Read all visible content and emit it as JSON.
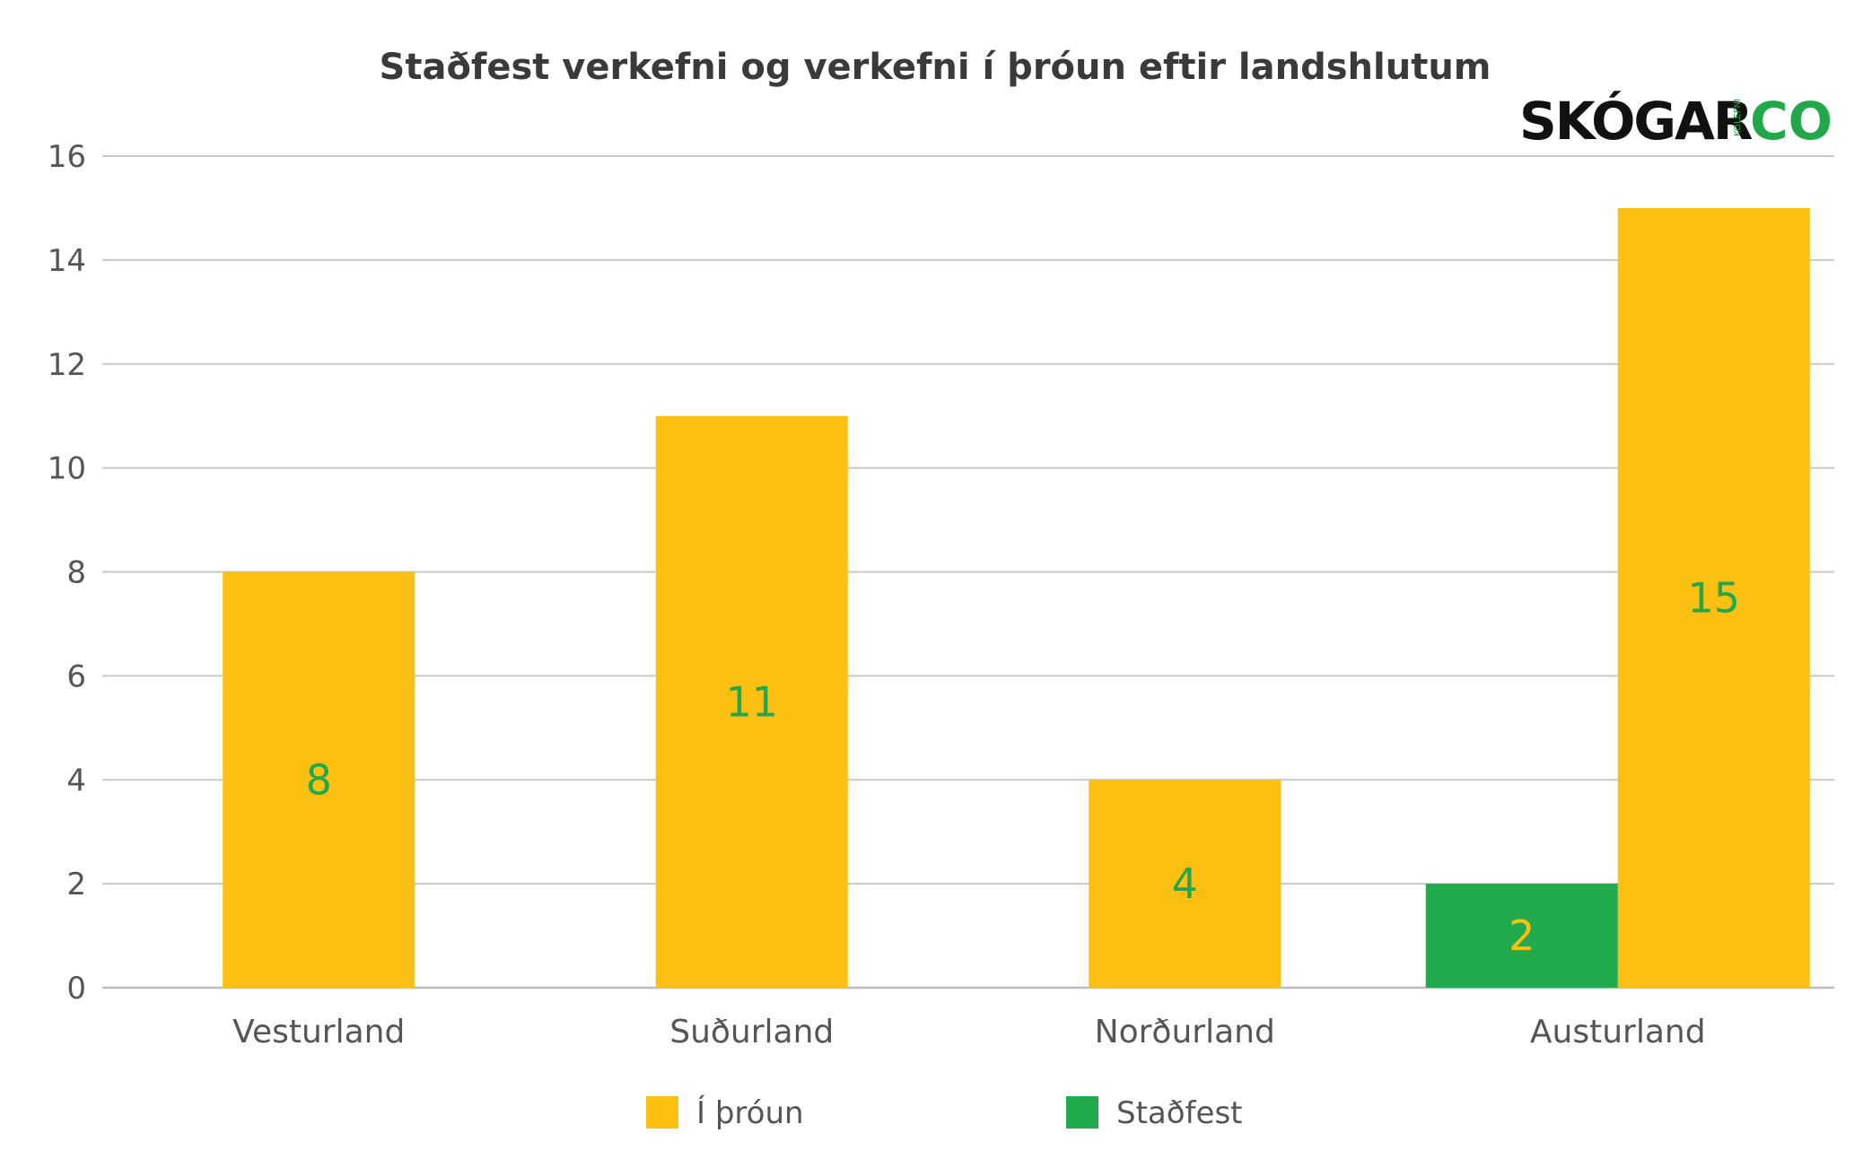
{
  "chart_data": {
    "type": "bar",
    "title": "Staðfest verkefni og verkefni í þróun eftir landshlutum",
    "categories": [
      "Vesturland",
      "Suðurland",
      "Norðurland",
      "Austurland"
    ],
    "series": [
      {
        "name": "Í þróun",
        "color": "#fbc012",
        "label_color": "#22a84a",
        "values": [
          8,
          11,
          4,
          15
        ]
      },
      {
        "name": "Staðfest",
        "color": "#22ab4c",
        "label_color": "#fbc012",
        "values": [
          null,
          null,
          null,
          2
        ]
      }
    ],
    "yticks": [
      "0",
      "2",
      "4",
      "6",
      "8",
      "10",
      "12",
      "14",
      "16"
    ],
    "ylim": [
      0,
      16
    ],
    "grid": true,
    "legend_position": "bottom",
    "xlabel": "",
    "ylabel": ""
  },
  "logo": {
    "text": "SKÓGAR",
    "small": "KOLEFNI",
    "co": "CO"
  }
}
